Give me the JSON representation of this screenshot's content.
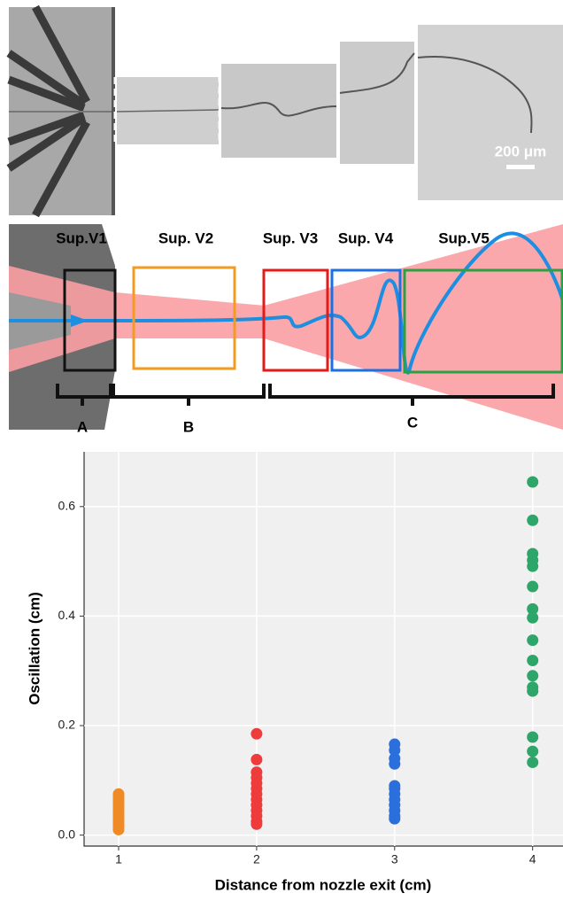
{
  "figure": {
    "scale_bar": "200 μm",
    "regions": [
      "Sup.V1",
      "Sup. V2",
      "Sup. V3",
      "Sup. V4",
      "Sup.V5"
    ],
    "segments": [
      "A",
      "B",
      "C"
    ]
  },
  "chart_data": {
    "type": "scatter",
    "xlabel": "Distance from nozzle exit (cm)",
    "ylabel": "Oscillation (cm)",
    "xlim": [
      0.75,
      4.22
    ],
    "ylim": [
      -0.02,
      0.7
    ],
    "xticks": [
      1,
      2,
      3,
      4
    ],
    "yticks": [
      {
        "value": 0,
        "label": "0.0"
      },
      0.2,
      0.4,
      0.6
    ],
    "grid": true,
    "series": [
      {
        "color": "#f08a24",
        "x": [
          1,
          1,
          1,
          1,
          1,
          1,
          1,
          1,
          1,
          1,
          1,
          1,
          1,
          1
        ],
        "values": [
          0.01,
          0.015,
          0.02,
          0.025,
          0.03,
          0.035,
          0.04,
          0.045,
          0.05,
          0.055,
          0.06,
          0.065,
          0.07,
          0.075
        ]
      },
      {
        "color": "#ee3b3b",
        "x": [
          2,
          2,
          2,
          2,
          2,
          2,
          2,
          2,
          2,
          2,
          2,
          2,
          2
        ],
        "values": [
          0.185,
          0.138,
          0.115,
          0.105,
          0.095,
          0.085,
          0.075,
          0.065,
          0.055,
          0.045,
          0.035,
          0.025,
          0.02
        ]
      },
      {
        "color": "#2a6fdb",
        "x": [
          3,
          3,
          3,
          3,
          3,
          3,
          3,
          3,
          3,
          3,
          3,
          3
        ],
        "values": [
          0.166,
          0.155,
          0.14,
          0.13,
          0.09,
          0.085,
          0.075,
          0.065,
          0.055,
          0.045,
          0.035,
          0.03
        ]
      },
      {
        "color": "#2ea66a",
        "x": [
          4,
          4,
          4,
          4,
          4,
          4,
          4,
          4,
          4,
          4,
          4,
          4,
          4,
          4,
          4,
          4
        ],
        "values": [
          0.645,
          0.575,
          0.514,
          0.502,
          0.491,
          0.454,
          0.413,
          0.397,
          0.356,
          0.319,
          0.291,
          0.27,
          0.263,
          0.179,
          0.153,
          0.133
        ]
      }
    ]
  }
}
